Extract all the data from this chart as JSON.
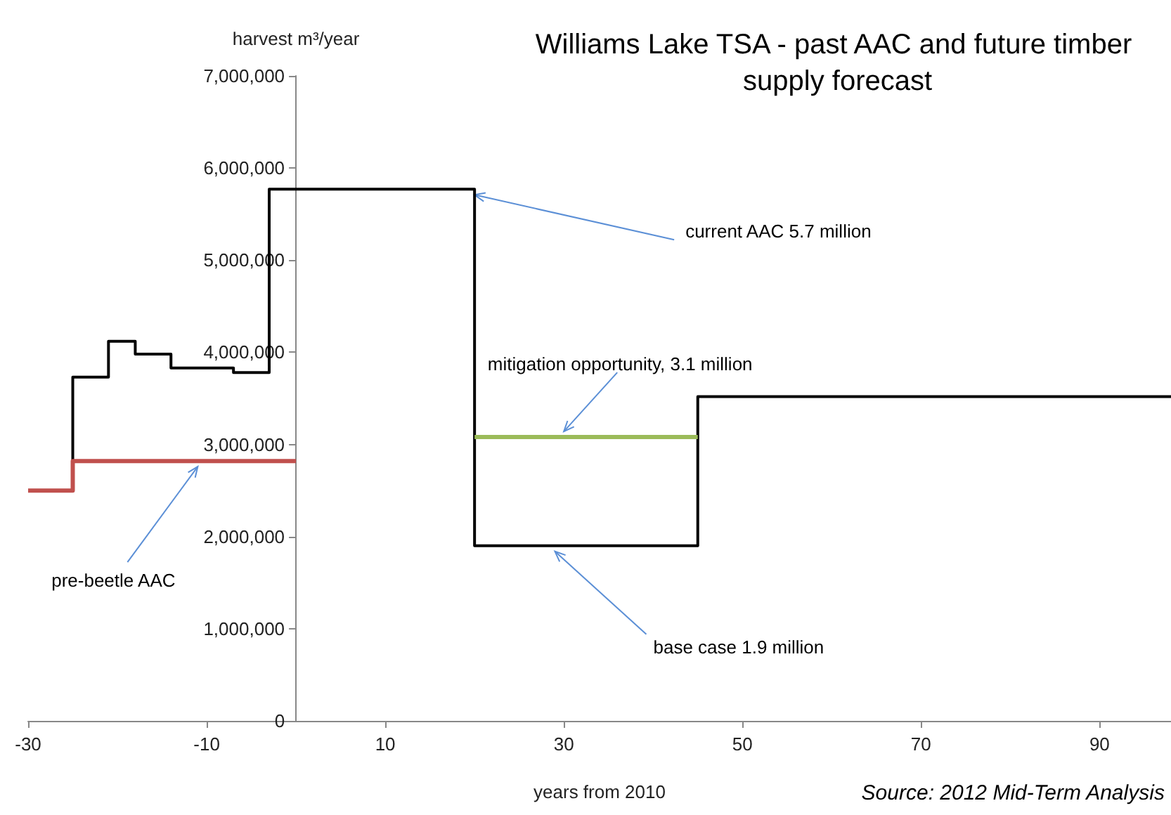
{
  "chart_data": {
    "type": "step",
    "title": "Williams Lake TSA - past AAC and future timber supply forecast",
    "xlabel": "years from 2010",
    "ylabel": "harvest m³/year",
    "xlim": [
      -30,
      98
    ],
    "xticks": [
      -30,
      -10,
      10,
      30,
      50,
      70,
      90
    ],
    "ylim": [
      0,
      7000000
    ],
    "yticks": [
      0,
      {
        "value": 1000000,
        "label": "1,000,000"
      },
      {
        "value": 2000000,
        "label": "2,000,000"
      },
      {
        "value": 3000000,
        "label": "3,000,000"
      },
      {
        "value": 4000000,
        "label": "4,000,000"
      },
      {
        "value": 5000000,
        "label": "5,000,000"
      },
      {
        "value": 6000000,
        "label": "6,000,000"
      },
      {
        "value": 7000000,
        "label": "7,000,000"
      }
    ],
    "series": [
      {
        "color": "#000000",
        "x": [
          -25,
          -25,
          -21,
          -18,
          -14,
          -7,
          -3,
          20,
          45,
          98
        ],
        "values": [
          2820000,
          3730000,
          4120000,
          3980000,
          3830000,
          3780000,
          5770000,
          1900000,
          3520000,
          3520000
        ]
      },
      {
        "color": "#c0504d",
        "x": [
          -30,
          -25,
          0
        ],
        "values": [
          2500000,
          2820000,
          2820000
        ]
      },
      {
        "color": "#9bbb59",
        "x": [
          20,
          45
        ],
        "values": [
          3080000,
          3080000
        ]
      }
    ],
    "annotations": [
      {
        "text": "current AAC 5.7 million",
        "x": 20,
        "y": 5770000
      },
      {
        "text": "mitigation opportunity, 3.1 million",
        "x": 30,
        "y": 3080000
      },
      {
        "text": "pre-beetle AAC",
        "x": -11,
        "y": 2820000
      },
      {
        "text": "base case 1.9 million",
        "x": 29,
        "y": 1900000
      },
      "Source: 2012 Mid-Term Analysis"
    ],
    "grid": false,
    "line_style": "solid",
    "marker": "none"
  }
}
